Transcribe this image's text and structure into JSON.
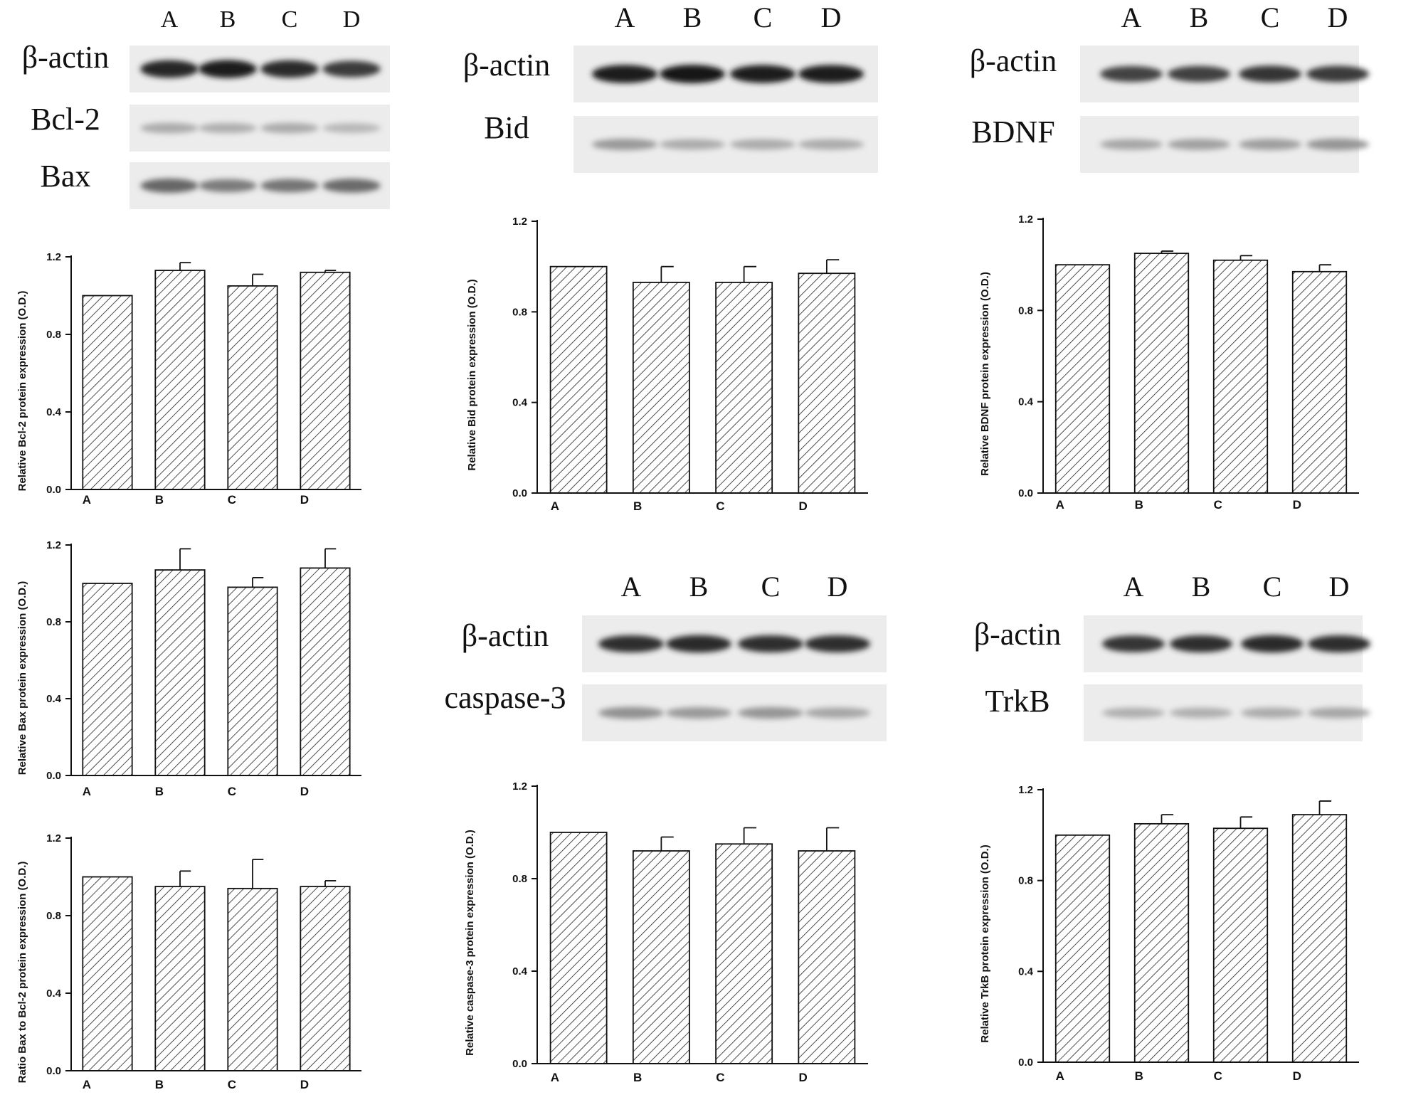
{
  "blot_lanes": [
    "A",
    "B",
    "C",
    "D"
  ],
  "blots": [
    {
      "id": "blot-1",
      "lanes": [
        "A",
        "B",
        "C",
        "D"
      ],
      "rows": [
        {
          "label": "β-actin",
          "intensity": [
            0.92,
            0.95,
            0.9,
            0.82
          ]
        },
        {
          "label": "Bcl-2",
          "intensity": [
            0.3,
            0.28,
            0.3,
            0.24
          ]
        },
        {
          "label": "Bax",
          "intensity": [
            0.62,
            0.52,
            0.55,
            0.6
          ]
        }
      ]
    },
    {
      "id": "blot-2",
      "lanes": [
        "A",
        "B",
        "C",
        "D"
      ],
      "rows": [
        {
          "label": "β-actin",
          "intensity": [
            0.97,
            0.98,
            0.95,
            0.96
          ]
        },
        {
          "label": "Bid",
          "intensity": [
            0.38,
            0.3,
            0.3,
            0.3
          ]
        }
      ]
    },
    {
      "id": "blot-3",
      "lanes": [
        "A",
        "B",
        "C",
        "D"
      ],
      "rows": [
        {
          "label": "β-actin",
          "intensity": [
            0.78,
            0.8,
            0.84,
            0.82
          ]
        },
        {
          "label": "BDNF",
          "intensity": [
            0.32,
            0.35,
            0.36,
            0.4
          ]
        }
      ]
    },
    {
      "id": "blot-4",
      "lanes": [
        "A",
        "B",
        "C",
        "D"
      ],
      "rows": [
        {
          "label": "β-actin",
          "intensity": [
            0.88,
            0.9,
            0.88,
            0.88
          ]
        },
        {
          "label": "caspase-3",
          "intensity": [
            0.42,
            0.38,
            0.4,
            0.32
          ]
        }
      ]
    },
    {
      "id": "blot-5",
      "lanes": [
        "A",
        "B",
        "C",
        "D"
      ],
      "rows": [
        {
          "label": "β-actin",
          "intensity": [
            0.85,
            0.88,
            0.9,
            0.88
          ]
        },
        {
          "label": "TrkB",
          "intensity": [
            0.28,
            0.28,
            0.3,
            0.32
          ]
        }
      ]
    }
  ],
  "chart_data": [
    {
      "id": "bcl2",
      "type": "bar",
      "categories": [
        "A",
        "B",
        "C",
        "D"
      ],
      "values": [
        1.0,
        1.13,
        1.05,
        1.12
      ],
      "errors": [
        0,
        0.04,
        0.06,
        0.01
      ],
      "ylabel": "Relative Bcl-2 protein expression (O.D.)",
      "ylim": [
        0,
        1.2
      ],
      "yticks": [
        "0.0",
        "0.4",
        "0.8",
        "1.2"
      ],
      "bar_fill": "diagonal hatch",
      "grid": false
    },
    {
      "id": "bax",
      "type": "bar",
      "categories": [
        "A",
        "B",
        "C",
        "D"
      ],
      "values": [
        1.0,
        1.07,
        0.98,
        1.08
      ],
      "errors": [
        0,
        0.11,
        0.05,
        0.1
      ],
      "ylabel": "Relative Bax protein expression (O.D.)",
      "ylim": [
        0,
        1.2
      ],
      "yticks": [
        "0.0",
        "0.4",
        "0.8",
        "1.2"
      ],
      "bar_fill": "diagonal hatch",
      "grid": false
    },
    {
      "id": "ratio",
      "type": "bar",
      "categories": [
        "A",
        "B",
        "C",
        "D"
      ],
      "values": [
        1.0,
        0.95,
        0.94,
        0.95
      ],
      "errors": [
        0,
        0.08,
        0.15,
        0.03
      ],
      "ylabel": "Ratio Bax to Bcl-2 protein expression (O.D.)",
      "ylim": [
        0,
        1.2
      ],
      "yticks": [
        "0.0",
        "0.4",
        "0.8",
        "1.2"
      ],
      "bar_fill": "diagonal hatch",
      "grid": false
    },
    {
      "id": "bid",
      "type": "bar",
      "categories": [
        "A",
        "B",
        "C",
        "D"
      ],
      "values": [
        1.0,
        0.93,
        0.93,
        0.97
      ],
      "errors": [
        0,
        0.07,
        0.07,
        0.06
      ],
      "ylabel": "Relative Bid protein expression (O.D.)",
      "ylim": [
        0,
        1.2
      ],
      "yticks": [
        "0.0",
        "0.4",
        "0.8",
        "1.2"
      ],
      "bar_fill": "diagonal hatch",
      "grid": false
    },
    {
      "id": "caspase3",
      "type": "bar",
      "categories": [
        "A",
        "B",
        "C",
        "D"
      ],
      "values": [
        1.0,
        0.92,
        0.95,
        0.92
      ],
      "errors": [
        0,
        0.06,
        0.07,
        0.1
      ],
      "ylabel": "Relative caspase-3 protein expression (O.D.)",
      "ylim": [
        0,
        1.2
      ],
      "yticks": [
        "0.0",
        "0.4",
        "0.8",
        "1.2"
      ],
      "bar_fill": "diagonal hatch",
      "grid": false
    },
    {
      "id": "bdnf",
      "type": "bar",
      "categories": [
        "A",
        "B",
        "C",
        "D"
      ],
      "values": [
        1.0,
        1.05,
        1.02,
        0.97
      ],
      "errors": [
        0,
        0.01,
        0.02,
        0.03
      ],
      "ylabel": "Relative BDNF protein expression (O.D.)",
      "ylim": [
        0,
        1.2
      ],
      "yticks": [
        "0.0",
        "0.4",
        "0.8",
        "1.2"
      ],
      "bar_fill": "diagonal hatch",
      "grid": false
    },
    {
      "id": "trkb",
      "type": "bar",
      "categories": [
        "A",
        "B",
        "C",
        "D"
      ],
      "values": [
        1.0,
        1.05,
        1.03,
        1.09
      ],
      "errors": [
        0,
        0.04,
        0.05,
        0.06
      ],
      "ylabel": "Relative TrkB protein expression (O.D.)",
      "ylim": [
        0,
        1.2
      ],
      "yticks": [
        "0.0",
        "0.4",
        "0.8",
        "1.2"
      ],
      "bar_fill": "diagonal hatch",
      "grid": false
    }
  ]
}
